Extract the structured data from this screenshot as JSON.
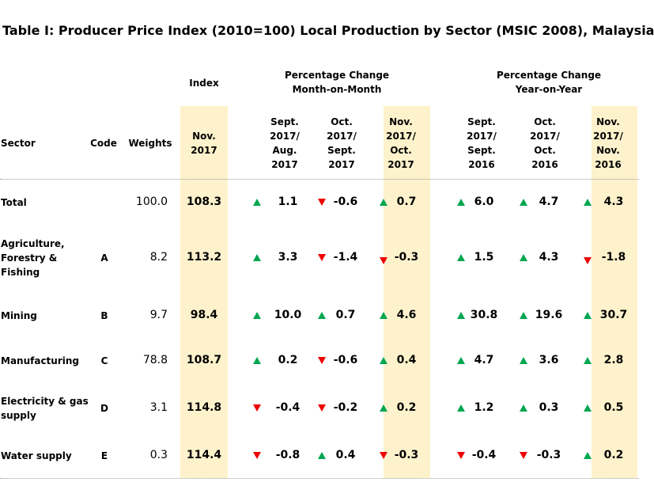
{
  "title": "Table I: Producer Price Index (2010=100) Local Production by Sector (MSIC 2008), Malaysia",
  "group_headers": {
    "index": "Index",
    "mom": [
      "Percentage Change",
      "Month-on-Month"
    ],
    "yoy": [
      "Percentage Change",
      "Year-on-Year"
    ]
  },
  "columns": {
    "sector": "Sector",
    "code": "Code",
    "weights": "Weights",
    "index_period": [
      "Nov.",
      "2017"
    ],
    "mom1": [
      "Sept.",
      "2017/",
      "Aug.",
      "2017"
    ],
    "mom2": [
      "Oct.",
      "2017/",
      "Sept.",
      "2017"
    ],
    "mom3": [
      "Nov.",
      "2017/",
      "Oct.",
      "2017"
    ],
    "yoy1": [
      "Sept.",
      "2017/",
      "Sept.",
      "2016"
    ],
    "yoy2": [
      "Oct.",
      "2017/",
      "Oct.",
      "2016"
    ],
    "yoy3": [
      "Nov.",
      "2017/",
      "Nov.",
      "2016"
    ]
  },
  "colors": {
    "highlight": "#fef2cc",
    "up": "#00a650",
    "down": "#ee0000"
  },
  "rows": [
    {
      "sector": [
        "Total"
      ],
      "code": "",
      "weight": "100.0",
      "index": "108.3",
      "mom": [
        "1.1",
        "-0.6",
        "0.7"
      ],
      "mom_dir": [
        "up",
        "down",
        "up"
      ],
      "yoy": [
        "6.0",
        "4.7",
        "4.3"
      ],
      "yoy_dir": [
        "up",
        "up",
        "up"
      ]
    },
    {
      "sector": [
        "Agriculture,",
        "Forestry &",
        "Fishing"
      ],
      "code": "A",
      "weight": "8.2",
      "index": "113.2",
      "mom": [
        "3.3",
        "-1.4",
        "-0.3"
      ],
      "mom_dir": [
        "up",
        "down",
        "down"
      ],
      "yoy": [
        "1.5",
        "4.3",
        "-1.8"
      ],
      "yoy_dir": [
        "up",
        "up",
        "down"
      ]
    },
    {
      "sector": [
        "Mining"
      ],
      "code": "B",
      "weight": "9.7",
      "index": "98.4",
      "mom": [
        "10.0",
        "0.7",
        "4.6"
      ],
      "mom_dir": [
        "up",
        "up",
        "up"
      ],
      "yoy": [
        "30.8",
        "19.6",
        "30.7"
      ],
      "yoy_dir": [
        "up",
        "up",
        "up"
      ]
    },
    {
      "sector": [
        "Manufacturing"
      ],
      "code": "C",
      "weight": "78.8",
      "index": "108.7",
      "mom": [
        "0.2",
        "-0.6",
        "0.4"
      ],
      "mom_dir": [
        "up",
        "down",
        "up"
      ],
      "yoy": [
        "4.7",
        "3.6",
        "2.8"
      ],
      "yoy_dir": [
        "up",
        "up",
        "up"
      ]
    },
    {
      "sector": [
        "Electricity & gas",
        "supply"
      ],
      "code": "D",
      "weight": "3.1",
      "index": "114.8",
      "mom": [
        "-0.4",
        "-0.2",
        "0.2"
      ],
      "mom_dir": [
        "down",
        "down",
        "up"
      ],
      "yoy": [
        "1.2",
        "0.3",
        "0.5"
      ],
      "yoy_dir": [
        "up",
        "up",
        "up"
      ]
    },
    {
      "sector": [
        "Water supply"
      ],
      "code": "E",
      "weight": "0.3",
      "index": "114.4",
      "mom": [
        "-0.8",
        "0.4",
        "-0.3"
      ],
      "mom_dir": [
        "down",
        "up",
        "down"
      ],
      "yoy": [
        "-0.4",
        "-0.3",
        "0.2"
      ],
      "yoy_dir": [
        "down",
        "down",
        "up"
      ]
    }
  ]
}
